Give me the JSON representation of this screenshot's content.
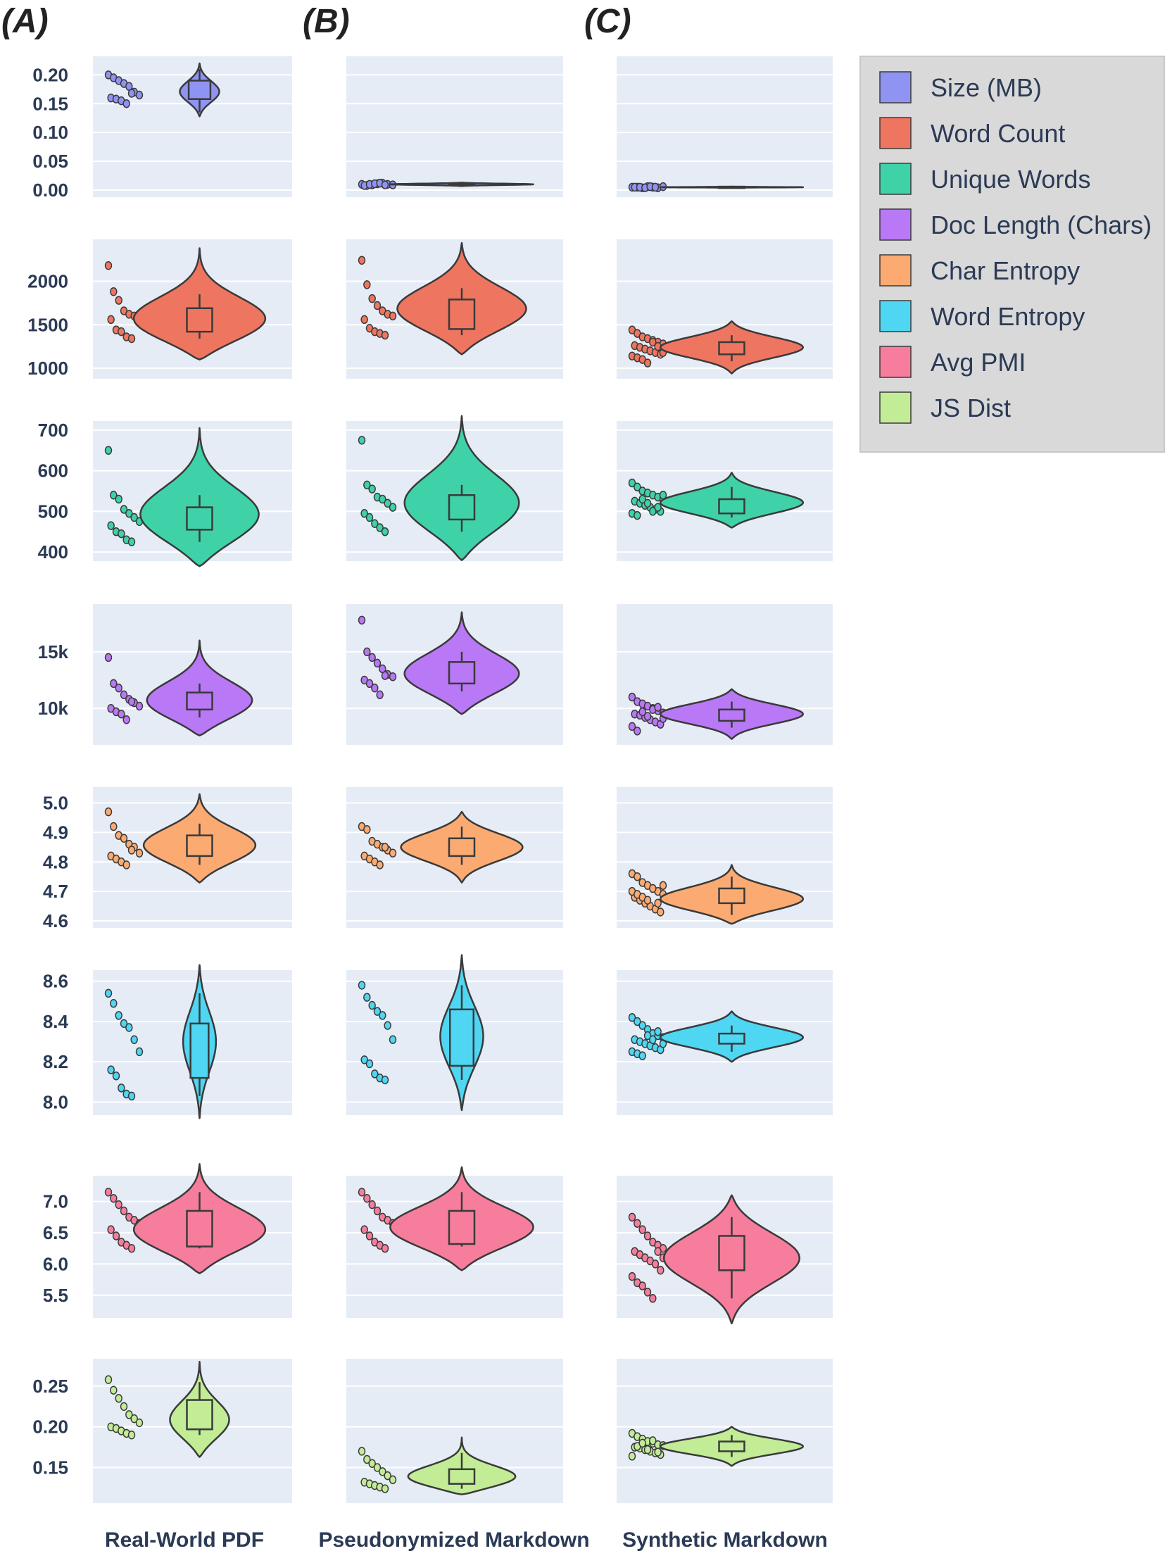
{
  "panel_letters": [
    "(A)",
    "(B)",
    "(C)"
  ],
  "columns": [
    "Real-World PDF",
    "Pseudonymized Markdown",
    "Synthetic Markdown"
  ],
  "legend": {
    "entries": [
      {
        "label": "Size (MB)",
        "color": "#8f94f2"
      },
      {
        "label": "Word Count",
        "color": "#ee7660"
      },
      {
        "label": "Unique Words",
        "color": "#3fd2a8"
      },
      {
        "label": "Doc Length (Chars)",
        "color": "#b978f5"
      },
      {
        "label": "Char Entropy",
        "color": "#fbab72"
      },
      {
        "label": "Word Entropy",
        "color": "#4fd6f2"
      },
      {
        "label": "Avg PMI",
        "color": "#f67e9c"
      },
      {
        "label": "JS Dist",
        "color": "#c2ec96"
      }
    ]
  },
  "colors": {
    "panel_bg": "#e5ecf6",
    "gridline": "#ffffff",
    "outline": "#3a3a3a"
  },
  "chart_data": {
    "type": "violin",
    "subtype": "violin with embedded box plot and jittered strip of points",
    "grid": true,
    "legend_position": "top-right",
    "columns": [
      "Real-World PDF",
      "Pseudonymized Markdown",
      "Synthetic Markdown"
    ],
    "rows": [
      {
        "metric": "Size (MB)",
        "color": "#8f94f2",
        "ylim": [
          0.0,
          0.22
        ],
        "ticks": [
          0.0,
          0.05,
          0.1,
          0.15,
          0.2
        ],
        "tick_labels": [
          "0.00",
          "0.05",
          "0.10",
          "0.15",
          "0.20"
        ],
        "data": [
          {
            "points": [
              0.2,
              0.195,
              0.19,
              0.185,
              0.18,
              0.17,
              0.165,
              0.16,
              0.158,
              0.155,
              0.15,
              0.168
            ],
            "q1": 0.158,
            "median": 0.17,
            "q3": 0.19,
            "wmin": 0.135,
            "wmax": 0.21,
            "vmin": 0.128,
            "vmax": 0.22,
            "mode": 0.17,
            "width": 0.3
          },
          {
            "points": [
              0.01,
              0.008,
              0.009,
              0.011,
              0.012,
              0.01,
              0.009,
              0.008,
              0.01,
              0.011,
              0.012,
              0.009
            ],
            "q1": 0.009,
            "median": 0.01,
            "q3": 0.011,
            "wmin": 0.008,
            "wmax": 0.012,
            "vmin": 0.007,
            "vmax": 0.013,
            "mode": 0.01,
            "width": 1.0
          },
          {
            "points": [
              0.005,
              0.005,
              0.004,
              0.006,
              0.005,
              0.004,
              0.006,
              0.005,
              0.005,
              0.004,
              0.006,
              0.005
            ],
            "q1": 0.004,
            "median": 0.005,
            "q3": 0.006,
            "wmin": 0.004,
            "wmax": 0.006,
            "vmin": 0.004,
            "vmax": 0.006,
            "mode": 0.005,
            "width": 1.0
          }
        ]
      },
      {
        "metric": "Word Count",
        "color": "#ee7660",
        "ylim": [
          960,
          2400
        ],
        "ticks": [
          1000,
          1500,
          2000
        ],
        "tick_labels": [
          "1000",
          "1500",
          "2000"
        ],
        "data": [
          {
            "points": [
              2180,
              1880,
              1780,
              1660,
              1620,
              1600,
              1580,
              1560,
              1440,
              1420,
              1360,
              1340
            ],
            "q1": 1420,
            "median": 1520,
            "q3": 1690,
            "wmin": 1340,
            "wmax": 1850,
            "vmin": 1100,
            "vmax": 2380,
            "mode": 1520,
            "width": 1.0
          },
          {
            "points": [
              2240,
              1960,
              1800,
              1720,
              1660,
              1620,
              1600,
              1560,
              1460,
              1420,
              1400,
              1380
            ],
            "q1": 1450,
            "median": 1650,
            "q3": 1790,
            "wmin": 1380,
            "wmax": 1920,
            "vmin": 1160,
            "vmax": 2440,
            "mode": 1650,
            "width": 0.9
          },
          {
            "points": [
              1440,
              1400,
              1360,
              1340,
              1320,
              1300,
              1280,
              1260,
              1240,
              1220,
              1200,
              1180,
              1160,
              1140,
              1120,
              1100,
              1060,
              1300,
              1250,
              1180
            ],
            "q1": 1160,
            "median": 1220,
            "q3": 1300,
            "wmin": 1080,
            "wmax": 1380,
            "vmin": 940,
            "vmax": 1540,
            "mode": 1240,
            "width": 1.0
          }
        ]
      },
      {
        "metric": "Unique Words",
        "color": "#3fd2a8",
        "ylim": [
          395,
          705
        ],
        "ticks": [
          400,
          500,
          600,
          700
        ],
        "tick_labels": [
          "400",
          "500",
          "600",
          "700"
        ],
        "data": [
          {
            "points": [
              650,
              540,
              530,
              505,
              495,
              485,
              475,
              465,
              450,
              445,
              430,
              425
            ],
            "q1": 455,
            "median": 475,
            "q3": 510,
            "wmin": 425,
            "wmax": 540,
            "vmin": 365,
            "vmax": 705,
            "mode": 480,
            "width": 0.9
          },
          {
            "points": [
              675,
              565,
              555,
              535,
              530,
              520,
              510,
              495,
              485,
              470,
              460,
              450
            ],
            "q1": 480,
            "median": 510,
            "q3": 540,
            "wmin": 450,
            "wmax": 565,
            "vmin": 380,
            "vmax": 735,
            "mode": 510,
            "width": 0.8
          },
          {
            "points": [
              570,
              560,
              550,
              545,
              540,
              535,
              530,
              525,
              520,
              515,
              510,
              505,
              500,
              495,
              490,
              530,
              520,
              500,
              510,
              540
            ],
            "q1": 495,
            "median": 515,
            "q3": 530,
            "wmin": 485,
            "wmax": 560,
            "vmin": 460,
            "vmax": 595,
            "mode": 520,
            "width": 1.0
          }
        ]
      },
      {
        "metric": "Doc Length (Chars)",
        "color": "#b978f5",
        "ylim": [
          7400,
          18600
        ],
        "ticks": [
          10000,
          15000
        ],
        "tick_labels": [
          "10k",
          "15k"
        ],
        "data": [
          {
            "points": [
              14500,
              12200,
              11800,
              11200,
              10800,
              10500,
              10200,
              10000,
              9700,
              9500,
              9000,
              10600
            ],
            "q1": 9900,
            "median": 10500,
            "q3": 11400,
            "wmin": 9200,
            "wmax": 12200,
            "vmin": 7600,
            "vmax": 16000,
            "mode": 10400,
            "width": 0.8
          },
          {
            "points": [
              17800,
              15000,
              14500,
              14000,
              13500,
              13000,
              12800,
              12500,
              12200,
              11800,
              11200,
              12900
            ],
            "q1": 12200,
            "median": 13000,
            "q3": 14100,
            "wmin": 11500,
            "wmax": 15000,
            "vmin": 9500,
            "vmax": 18500,
            "mode": 12800,
            "width": 0.8
          },
          {
            "points": [
              11000,
              10600,
              10400,
              10200,
              10000,
              9800,
              9600,
              9500,
              9400,
              9200,
              9000,
              8800,
              8600,
              8400,
              8000,
              9700,
              9300,
              9900,
              10100,
              9100
            ],
            "q1": 8900,
            "median": 9300,
            "q3": 9900,
            "wmin": 8300,
            "wmax": 10600,
            "vmin": 7300,
            "vmax": 11700,
            "mode": 9500,
            "width": 1.0
          }
        ]
      },
      {
        "metric": "Char Entropy",
        "color": "#fbab72",
        "ylim": [
          4.6,
          5.03
        ],
        "ticks": [
          4.6,
          4.7,
          4.8,
          4.9,
          5.0
        ],
        "tick_labels": [
          "4.6",
          "4.7",
          "4.8",
          "4.9",
          "5.0"
        ],
        "data": [
          {
            "points": [
              4.97,
              4.92,
              4.89,
              4.88,
              4.86,
              4.85,
              4.83,
              4.82,
              4.81,
              4.8,
              4.79,
              4.84
            ],
            "q1": 4.82,
            "median": 4.855,
            "q3": 4.89,
            "wmin": 4.79,
            "wmax": 4.93,
            "vmin": 4.73,
            "vmax": 5.03,
            "mode": 4.85,
            "width": 0.85
          },
          {
            "points": [
              4.92,
              4.91,
              4.87,
              4.86,
              4.85,
              4.84,
              4.83,
              4.82,
              4.81,
              4.8,
              4.79,
              4.85
            ],
            "q1": 4.82,
            "median": 4.845,
            "q3": 4.88,
            "wmin": 4.79,
            "wmax": 4.92,
            "vmin": 4.73,
            "vmax": 4.97,
            "mode": 4.85,
            "width": 0.85
          },
          {
            "points": [
              4.76,
              4.75,
              4.73,
              4.72,
              4.71,
              4.7,
              4.69,
              4.68,
              4.67,
              4.66,
              4.65,
              4.64,
              4.63,
              4.7,
              4.69,
              4.68,
              4.67,
              4.71,
              4.66,
              4.72
            ],
            "q1": 4.66,
            "median": 4.68,
            "q3": 4.71,
            "wmin": 4.62,
            "wmax": 4.75,
            "vmin": 4.59,
            "vmax": 4.79,
            "mode": 4.67,
            "width": 1.0
          }
        ]
      },
      {
        "metric": "Word Entropy",
        "color": "#4fd6f2",
        "ylim": [
          7.97,
          8.62
        ],
        "ticks": [
          8.0,
          8.2,
          8.4,
          8.6
        ],
        "tick_labels": [
          "8.0",
          "8.2",
          "8.4",
          "8.6"
        ],
        "data": [
          {
            "points": [
              8.54,
              8.49,
              8.43,
              8.39,
              8.37,
              8.31,
              8.25,
              8.16,
              8.13,
              8.07,
              8.04,
              8.03
            ],
            "q1": 8.12,
            "median": 8.28,
            "q3": 8.39,
            "wmin": 8.03,
            "wmax": 8.54,
            "vmin": 7.92,
            "vmax": 8.68,
            "mode": 8.3,
            "width": 0.25
          },
          {
            "points": [
              8.58,
              8.52,
              8.48,
              8.45,
              8.43,
              8.38,
              8.31,
              8.21,
              8.19,
              8.14,
              8.12,
              8.11
            ],
            "q1": 8.18,
            "median": 8.32,
            "q3": 8.46,
            "wmin": 8.11,
            "wmax": 8.58,
            "vmin": 7.96,
            "vmax": 8.73,
            "mode": 8.32,
            "width": 0.3
          },
          {
            "points": [
              8.42,
              8.4,
              8.38,
              8.36,
              8.34,
              8.33,
              8.32,
              8.31,
              8.3,
              8.29,
              8.28,
              8.27,
              8.26,
              8.25,
              8.24,
              8.23,
              8.33,
              8.31,
              8.35,
              8.29
            ],
            "q1": 8.29,
            "median": 8.31,
            "q3": 8.34,
            "wmin": 8.25,
            "wmax": 8.38,
            "vmin": 8.2,
            "vmax": 8.45,
            "mode": 8.32,
            "width": 1.0
          }
        ]
      },
      {
        "metric": "Avg PMI",
        "color": "#f67e9c",
        "ylim": [
          5.25,
          7.3
        ],
        "ticks": [
          5.5,
          6.0,
          6.5,
          7.0
        ],
        "tick_labels": [
          "5.5",
          "6.0",
          "6.5",
          "7.0"
        ],
        "data": [
          {
            "points": [
              7.15,
              7.05,
              6.95,
              6.85,
              6.75,
              6.7,
              6.65,
              6.55,
              6.45,
              6.35,
              6.3,
              6.25
            ],
            "q1": 6.28,
            "median": 6.55,
            "q3": 6.85,
            "wmin": 6.25,
            "wmax": 7.15,
            "vmin": 5.85,
            "vmax": 7.6,
            "mode": 6.5,
            "width": 1.0
          },
          {
            "points": [
              7.15,
              7.05,
              6.95,
              6.85,
              6.75,
              6.7,
              6.65,
              6.55,
              6.45,
              6.35,
              6.3,
              6.25
            ],
            "q1": 6.32,
            "median": 6.6,
            "q3": 6.85,
            "wmin": 6.28,
            "wmax": 7.15,
            "vmin": 5.9,
            "vmax": 7.55,
            "mode": 6.55,
            "width": 1.0
          },
          {
            "points": [
              6.75,
              6.65,
              6.55,
              6.45,
              6.35,
              6.3,
              6.25,
              6.2,
              6.15,
              6.1,
              6.05,
              6.0,
              5.9,
              5.8,
              5.7,
              5.65,
              5.55,
              5.45,
              6.2,
              6.1
            ],
            "q1": 5.9,
            "median": 6.15,
            "q3": 6.45,
            "wmin": 5.45,
            "wmax": 6.75,
            "vmin": 5.05,
            "vmax": 7.1,
            "mode": 6.1,
            "width": 0.95
          }
        ]
      },
      {
        "metric": "JS Dist",
        "color": "#c2ec96",
        "ylim": [
          0.115,
          0.275
        ],
        "ticks": [
          0.15,
          0.2,
          0.25
        ],
        "tick_labels": [
          "0.15",
          "0.20",
          "0.25"
        ],
        "data": [
          {
            "points": [
              0.258,
              0.245,
              0.235,
              0.225,
              0.215,
              0.21,
              0.205,
              0.2,
              0.198,
              0.195,
              0.192,
              0.19
            ],
            "q1": 0.197,
            "median": 0.21,
            "q3": 0.233,
            "wmin": 0.19,
            "wmax": 0.255,
            "vmin": 0.163,
            "vmax": 0.28,
            "mode": 0.205,
            "width": 0.45
          },
          {
            "points": [
              0.17,
              0.16,
              0.155,
              0.15,
              0.145,
              0.14,
              0.135,
              0.132,
              0.13,
              0.128,
              0.126,
              0.124
            ],
            "q1": 0.13,
            "median": 0.138,
            "q3": 0.148,
            "wmin": 0.124,
            "wmax": 0.168,
            "vmin": 0.117,
            "vmax": 0.187,
            "mode": 0.135,
            "width": 0.75
          },
          {
            "points": [
              0.192,
              0.188,
              0.185,
              0.182,
              0.18,
              0.178,
              0.177,
              0.175,
              0.174,
              0.172,
              0.17,
              0.168,
              0.166,
              0.164,
              0.176,
              0.18,
              0.172,
              0.183,
              0.169,
              0.177
            ],
            "q1": 0.17,
            "median": 0.175,
            "q3": 0.182,
            "wmin": 0.163,
            "wmax": 0.19,
            "vmin": 0.152,
            "vmax": 0.2,
            "mode": 0.176,
            "width": 1.0
          }
        ]
      }
    ]
  }
}
